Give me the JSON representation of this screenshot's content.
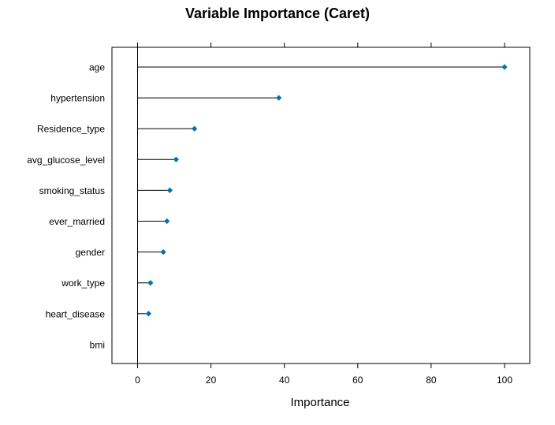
{
  "chart_data": {
    "type": "dot",
    "title": "Variable Importance (Caret)",
    "xlabel": "Importance",
    "ylabel": "",
    "xlim": [
      -7,
      107
    ],
    "xticks": [
      0,
      20,
      40,
      60,
      80,
      100
    ],
    "grid": false,
    "legend": "none",
    "categories": [
      "age",
      "hypertension",
      "Residence_type",
      "avg_glucose_level",
      "smoking_status",
      "ever_married",
      "gender",
      "work_type",
      "heart_disease",
      "bmi"
    ],
    "values": [
      100,
      38.5,
      15.5,
      10.5,
      8.8,
      8.0,
      7.0,
      3.5,
      3.0,
      0
    ],
    "point_color": "#0072b2",
    "line_color": "#000000"
  }
}
